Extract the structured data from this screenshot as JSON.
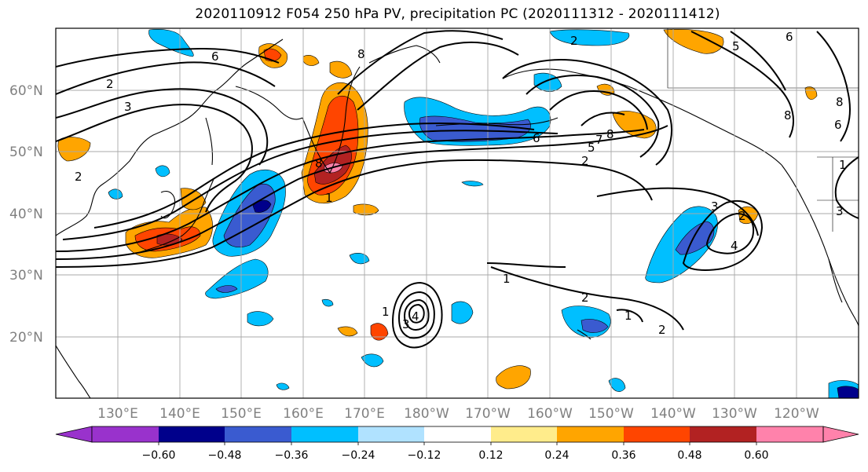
{
  "title": "2020110912 F054 250 hPa PV, precipitation PC (2020111312 - 2020111412)",
  "lat_labels": [
    "60°N",
    "50°N",
    "40°N",
    "30°N",
    "20°N"
  ],
  "lon_labels": [
    "130°E",
    "140°E",
    "150°E",
    "160°E",
    "170°E",
    "180°W",
    "170°W",
    "160°W",
    "150°W",
    "140°W",
    "130°W",
    "120°W"
  ],
  "colorbar": {
    "ticks": [
      "−0.60",
      "−0.48",
      "−0.36",
      "−0.24",
      "−0.12",
      "0.12",
      "0.24",
      "0.36",
      "0.48",
      "0.60"
    ],
    "colors": [
      "#9932cc",
      "#00008b",
      "#3a5bd0",
      "#00bfff",
      "#b0e2ff",
      "#ffffff",
      "#ffec8b",
      "#ffa500",
      "#ff4500",
      "#b22222",
      "#ff82ab"
    ]
  },
  "contour_labels": [
    "6",
    "2",
    "3",
    "2",
    "8",
    "6",
    "2",
    "5",
    "8",
    "7",
    "6",
    "5",
    "2",
    "8",
    "8",
    "6",
    "8",
    "3",
    "1",
    "2",
    "1",
    "2",
    "2",
    "1",
    "3",
    "4",
    "1",
    "3",
    "4",
    "1"
  ],
  "colors": {
    "contour": "#000000",
    "grid": "#a9a9a9",
    "coast": "#000000"
  }
}
